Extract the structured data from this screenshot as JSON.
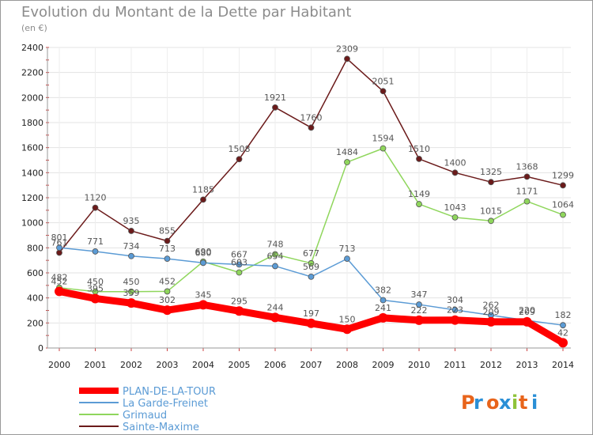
{
  "chart_data": {
    "type": "line",
    "title": "Evolution du Montant de la Dette par Habitant",
    "subtitle": "(en €)",
    "x": [
      "2000",
      "2001",
      "2002",
      "2003",
      "2004",
      "2005",
      "2006",
      "2007",
      "2008",
      "2009",
      "2010",
      "2011",
      "2012",
      "2013",
      "2014"
    ],
    "ylim": [
      0,
      2400
    ],
    "yticks": [
      0,
      200,
      400,
      600,
      800,
      1000,
      1200,
      1400,
      1600,
      1800,
      2000,
      2200,
      2400
    ],
    "grid": true,
    "legend_position": "bottom-left",
    "series": [
      {
        "name": "Sainte-Maxime",
        "color": "#6b1a1a",
        "values": [
          761,
          1120,
          935,
          855,
          1185,
          1508,
          1921,
          1760,
          2309,
          2051,
          1510,
          1400,
          1325,
          1368,
          1299
        ]
      },
      {
        "name": "Grimaud",
        "color": "#8fd65c",
        "values": [
          482,
          450,
          450,
          452,
          690,
          603,
          748,
          677,
          1484,
          1594,
          1149,
          1043,
          1015,
          1171,
          1064
        ]
      },
      {
        "name": "La Garde-Freinet",
        "color": "#5b9bd5",
        "values": [
          801,
          771,
          734,
          713,
          680,
          667,
          654,
          569,
          713,
          382,
          347,
          304,
          262,
          220,
          182
        ]
      },
      {
        "name": "PLAN-DE-LA-TOUR",
        "color": "#ff0000",
        "values": [
          452,
          395,
          359,
          302,
          345,
          295,
          244,
          197,
          150,
          241,
          222,
          223,
          209,
          209,
          42
        ]
      }
    ]
  },
  "legend": {
    "items": [
      {
        "name": "PLAN-DE-LA-TOUR",
        "color": "#ff0000"
      },
      {
        "name": "La Garde-Freinet",
        "color": "#5b9bd5"
      },
      {
        "name": "Grimaud",
        "color": "#8fd65c"
      },
      {
        "name": "Sainte-Maxime",
        "color": "#6b1a1a"
      }
    ]
  },
  "brand": {
    "text": "Proxiti"
  }
}
